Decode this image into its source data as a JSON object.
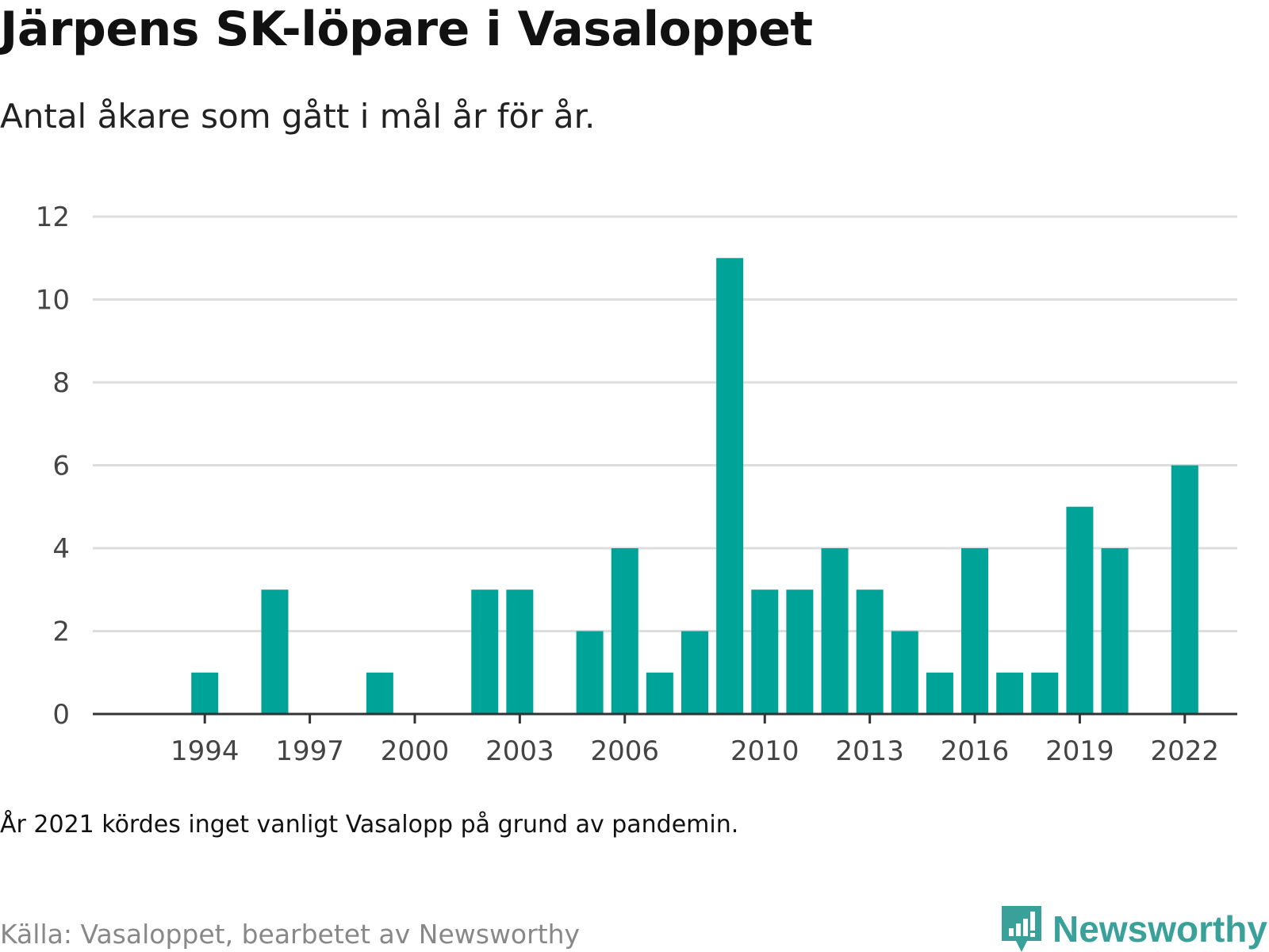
{
  "header": {
    "title": "Järpens SK-löpare i Vasaloppet",
    "subtitle": "Antal åkare som gått i mål år för år."
  },
  "footer": {
    "note": "År 2021 kördes inget vanligt Vasalopp på grund av pandemin.",
    "source": "Källa: Vasaloppet, bearbetet av Newsworthy",
    "brand": "Newsworthy"
  },
  "colors": {
    "bar": "#00a398",
    "grid": "#dddddd",
    "axis": "#333333",
    "brand": "#3aa19a"
  },
  "chart_data": {
    "type": "bar",
    "title": "Järpens SK-löpare i Vasaloppet",
    "subtitle": "Antal åkare som gått i mål år för år.",
    "xlabel": "",
    "ylabel": "",
    "x": [
      1994,
      1995,
      1996,
      1997,
      1998,
      1999,
      2000,
      2001,
      2002,
      2003,
      2004,
      2005,
      2006,
      2007,
      2008,
      2009,
      2010,
      2011,
      2012,
      2013,
      2014,
      2015,
      2016,
      2017,
      2018,
      2019,
      2020,
      2021,
      2022
    ],
    "values": [
      1,
      0,
      3,
      0,
      0,
      1,
      0,
      0,
      3,
      3,
      0,
      2,
      4,
      1,
      2,
      11,
      3,
      3,
      4,
      3,
      2,
      1,
      4,
      1,
      1,
      5,
      4,
      0,
      6
    ],
    "xticks": [
      "1994",
      "1997",
      "2000",
      "2003",
      "2006",
      "2010",
      "2013",
      "2016",
      "2019",
      "2022"
    ],
    "yticks": [
      "0",
      "2",
      "4",
      "6",
      "8",
      "10",
      "12"
    ],
    "ylim": [
      0,
      12
    ],
    "xlim": [
      1990.8,
      2023.5
    ],
    "grid": true,
    "legend": "none"
  }
}
